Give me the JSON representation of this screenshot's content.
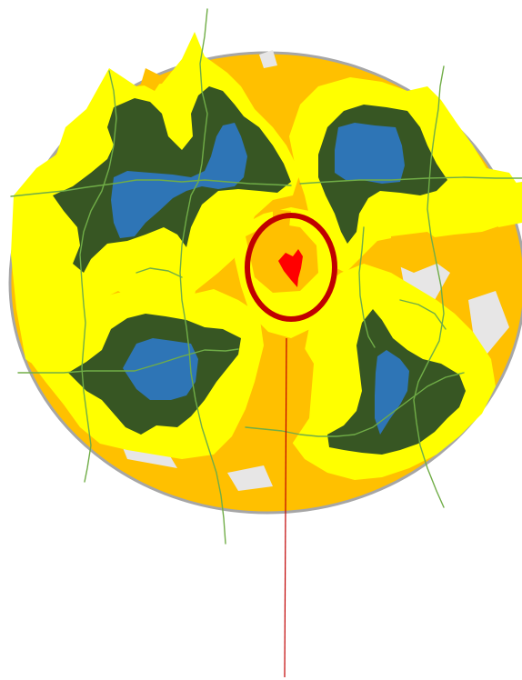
{
  "colors": {
    "background": "#ffffff",
    "disc_outline": "#a6a6a6",
    "disc_fill": "#ffc000",
    "buffer_zone": "#ffff00",
    "vegetation": "#375623",
    "water": "#2e75b6",
    "gap_patch": "#e7e6e6",
    "boundary_lines": "#70ad47",
    "target_patch": "#ff0000",
    "target_ring": "#c00000",
    "pointer_line": "#c00000"
  },
  "icons": {
    "target_marker": "red-circle-marker-icon"
  },
  "patches": {
    "count": 4,
    "features": [
      "vegetation",
      "water",
      "buffer"
    ]
  }
}
